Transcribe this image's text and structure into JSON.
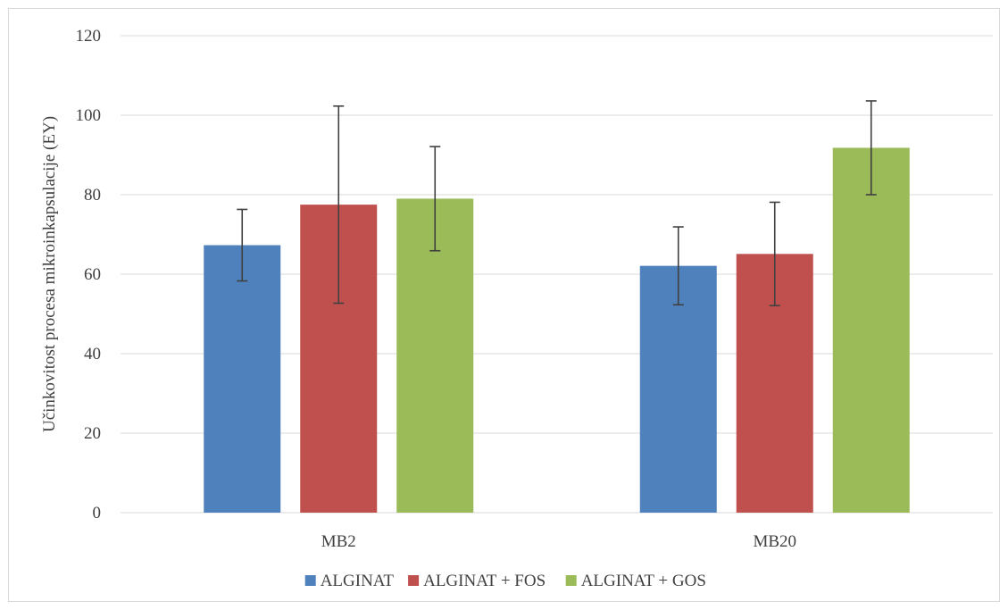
{
  "chart_data": {
    "type": "bar",
    "title": "",
    "xlabel": "",
    "ylabel": "Učinkovitost procesa mikroinkapsulacije (EY)",
    "ylim": [
      0,
      120
    ],
    "yticks": [
      "0",
      "20",
      "40",
      "60",
      "80",
      "100",
      "120"
    ],
    "grid": true,
    "legend_position": "bottom",
    "categories": [
      "MB2",
      "MB20"
    ],
    "series": [
      {
        "name": "ALGINAT",
        "color": "#4f81bd",
        "values": [
          67.3,
          62.1
        ],
        "error": [
          9.0,
          9.8
        ]
      },
      {
        "name": "ALGINAT + FOS",
        "color": "#c0504d",
        "values": [
          77.5,
          65.1
        ],
        "error": [
          24.8,
          13.0
        ]
      },
      {
        "name": "ALGINAT + GOS",
        "color": "#9bbb59",
        "values": [
          79.0,
          91.8
        ],
        "error": [
          13.1,
          11.8
        ]
      }
    ]
  }
}
